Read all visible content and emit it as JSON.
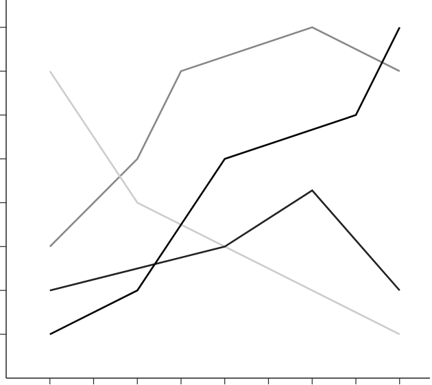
{
  "chart_data": {
    "type": "line",
    "title": "",
    "xlabel": "",
    "ylabel": "",
    "x": [
      1,
      2,
      3,
      4,
      5,
      6,
      7,
      8,
      9
    ],
    "xlim": [
      0,
      9.75
    ],
    "ylim": [
      0,
      8.5
    ],
    "grid": false,
    "series": [
      {
        "color": "#888888",
        "points": [
          [
            1,
            3
          ],
          [
            3,
            5
          ],
          [
            4,
            7
          ],
          [
            7,
            8
          ],
          [
            9,
            7
          ]
        ]
      },
      {
        "color": "#cccccc",
        "points": [
          [
            1,
            7
          ],
          [
            3,
            4
          ],
          [
            7,
            2
          ],
          [
            9,
            1
          ]
        ]
      },
      {
        "color": "#222222",
        "points": [
          [
            1,
            2
          ],
          [
            5,
            3
          ],
          [
            7,
            4.28
          ],
          [
            9,
            2
          ]
        ]
      },
      {
        "color": "#000000",
        "points": [
          [
            1,
            1
          ],
          [
            3,
            2
          ],
          [
            5,
            5
          ],
          [
            8,
            6
          ],
          [
            9,
            8
          ]
        ]
      }
    ],
    "yticks": [
      1,
      2,
      3,
      4,
      5,
      6,
      7,
      8
    ],
    "xticks": [
      1,
      2,
      3,
      4,
      5,
      6,
      7,
      8,
      9
    ]
  }
}
